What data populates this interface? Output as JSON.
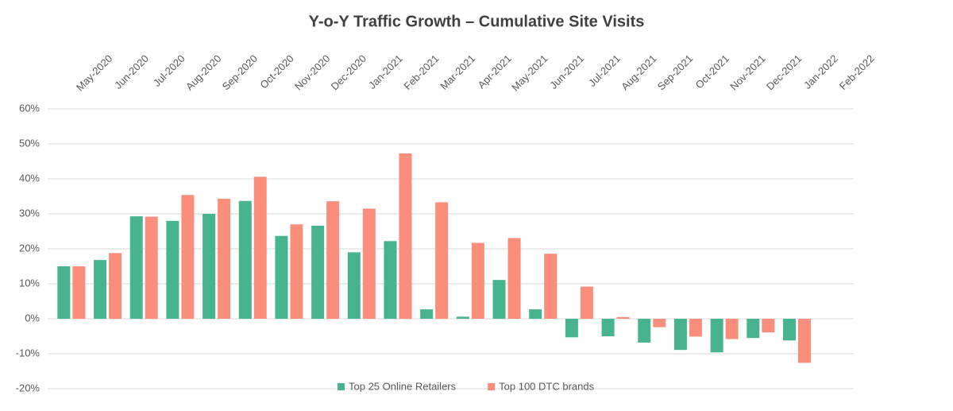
{
  "chart_data": {
    "type": "bar",
    "title": "Y-o-Y Traffic Growth – Cumulative Site Visits",
    "categories": [
      "May-2020",
      "Jun-2020",
      "Jul-2020",
      "Aug-2020",
      "Sep-2020",
      "Oct-2020",
      "Nov-2020",
      "Dec-2020",
      "Jan-2021",
      "Feb-2021",
      "Mar-2021",
      "Apr-2021",
      "May-2021",
      "Jun-2021",
      "Jul-2021",
      "Aug-2021",
      "Sep-2021",
      "Oct-2021",
      "Nov-2021",
      "Dec-2021",
      "Jan-2022",
      "Feb-2022"
    ],
    "series": [
      {
        "name": "Top 25 Online Retailers",
        "color": "#48b48f",
        "values": [
          15,
          16.8,
          29.3,
          28,
          30,
          33.7,
          23.7,
          26.6,
          19,
          22.2,
          2.7,
          0.6,
          11.1,
          2.7,
          -5.3,
          -5,
          -6.8,
          -8.9,
          -9.6,
          -5.5,
          -6.2,
          null
        ]
      },
      {
        "name": "Top 100 DTC brands",
        "color": "#fa8e7b",
        "values": [
          15,
          18.8,
          29.2,
          35.4,
          34.3,
          40.6,
          27,
          33.6,
          31.5,
          47.3,
          33.3,
          21.7,
          23.1,
          18.6,
          9.2,
          0.5,
          -2.4,
          -5.1,
          -5.8,
          -3.9,
          -12.6,
          null
        ]
      }
    ],
    "ylim": [
      -20,
      60
    ],
    "yticks": [
      {
        "value": -20,
        "label": "-20%"
      },
      {
        "value": -10,
        "label": "-10%"
      },
      {
        "value": 0,
        "label": "0%"
      },
      {
        "value": 10,
        "label": "10%"
      },
      {
        "value": 20,
        "label": "20%"
      },
      {
        "value": 30,
        "label": "30%"
      },
      {
        "value": 40,
        "label": "40%"
      },
      {
        "value": 50,
        "label": "50%"
      },
      {
        "value": 60,
        "label": "60%"
      }
    ],
    "grid": true,
    "legend": "bottom"
  }
}
